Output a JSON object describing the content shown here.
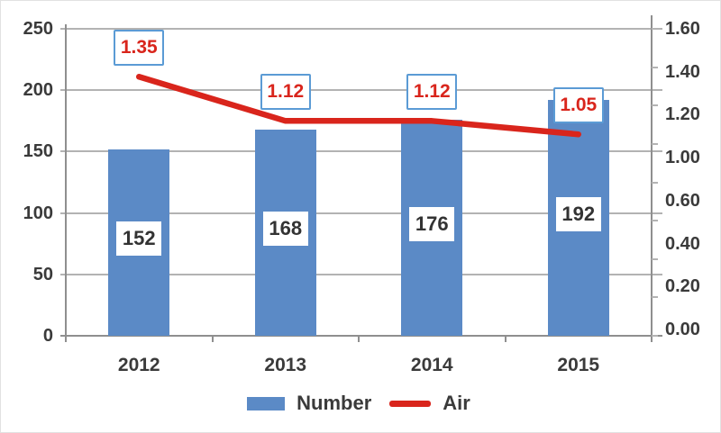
{
  "chart_data": {
    "type": "combo-bar-line",
    "categories": [
      "2012",
      "2013",
      "2014",
      "2015"
    ],
    "series": [
      {
        "name": "Number",
        "type": "bar",
        "axis": "left",
        "values": [
          152,
          168,
          176,
          192
        ],
        "data_labels": [
          "152",
          "168",
          "176",
          "192"
        ],
        "color": "#5b8ac6"
      },
      {
        "name": "Air",
        "type": "line",
        "axis": "right",
        "values": [
          1.35,
          1.12,
          1.12,
          1.05
        ],
        "data_labels": [
          "1.35",
          "1.12",
          "1.12",
          "1.05"
        ],
        "color": "#d9251c"
      }
    ],
    "left_axis": {
      "min": 0,
      "max": 250,
      "tick_labels": [
        "250",
        "200",
        "150",
        "100",
        "50",
        "0"
      ]
    },
    "right_axis": {
      "min": 0,
      "max": 1.6,
      "tick_labels": [
        "1.60",
        "1.40",
        "1.20",
        "1.00",
        "0.60",
        "0.40",
        "0.20",
        "0.00"
      ]
    },
    "grid": true,
    "legend_position": "bottom-center",
    "legend": [
      {
        "label": "Number",
        "swatch": "bar"
      },
      {
        "label": "Air",
        "swatch": "line"
      }
    ]
  },
  "colors": {
    "bar_fill": "#5b8ac6",
    "line_stroke": "#d9251c",
    "line_label_text": "#d9251c",
    "line_label_border": "#5b9bd5",
    "bar_label_text": "#333333",
    "axis_text": "#3a3a3a",
    "gridline": "#b3b3b3",
    "axis_line": "#8f8f8f"
  }
}
